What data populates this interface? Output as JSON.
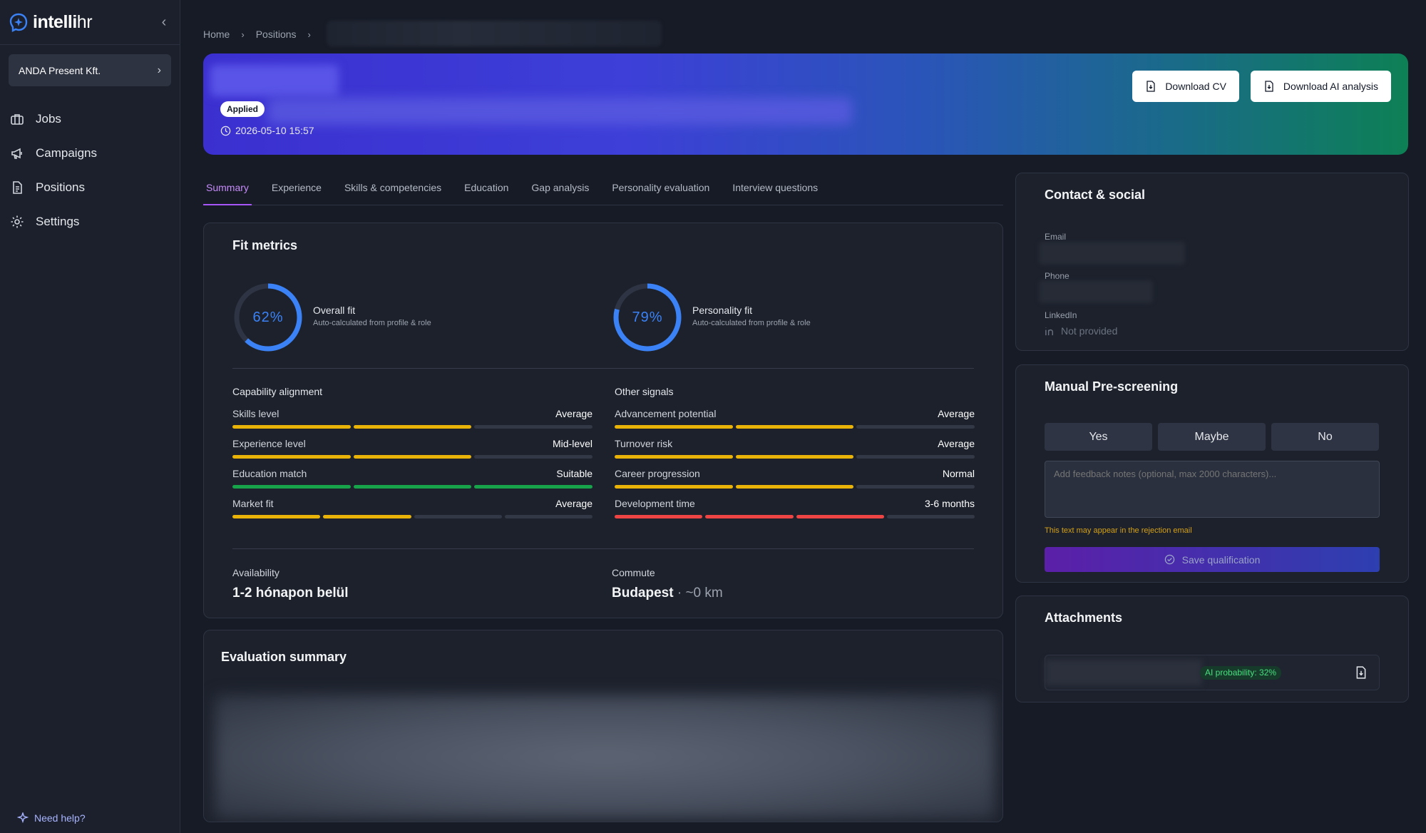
{
  "app": {
    "logo_bold": "intelli",
    "logo_light": "hr"
  },
  "sidebar": {
    "company": "ANDA Present Kft.",
    "items": [
      {
        "label": "Jobs",
        "icon": "briefcase-icon"
      },
      {
        "label": "Campaigns",
        "icon": "megaphone-icon"
      },
      {
        "label": "Positions",
        "icon": "document-icon"
      },
      {
        "label": "Settings",
        "icon": "gear-icon"
      }
    ],
    "help": "Need help?"
  },
  "breadcrumb": {
    "home": "Home",
    "positions": "Positions"
  },
  "hero": {
    "status": "Applied",
    "date": "2026-05-10 15:57",
    "download_cv": "Download CV",
    "download_ai": "Download AI analysis"
  },
  "tabs": [
    "Summary",
    "Experience",
    "Skills & competencies",
    "Education",
    "Gap analysis",
    "Personality evaluation",
    "Interview questions"
  ],
  "fit": {
    "title": "Fit metrics",
    "overall": {
      "value": "62%",
      "percent": 62,
      "label": "Overall fit",
      "sub": "Auto-calculated from profile & role"
    },
    "personality": {
      "value": "79%",
      "percent": 79,
      "label": "Personality fit",
      "sub": "Auto-calculated from profile & role"
    },
    "capability": {
      "title": "Capability alignment",
      "metrics": [
        {
          "name": "Skills level",
          "value": "Average",
          "bars": [
            "y",
            "y",
            ""
          ]
        },
        {
          "name": "Experience level",
          "value": "Mid-level",
          "bars": [
            "y",
            "y",
            ""
          ]
        },
        {
          "name": "Education match",
          "value": "Suitable",
          "bars": [
            "g",
            "g",
            "g"
          ]
        },
        {
          "name": "Market fit",
          "value": "Average",
          "bars": [
            "y",
            "y",
            "",
            ""
          ]
        }
      ]
    },
    "signals": {
      "title": "Other signals",
      "metrics": [
        {
          "name": "Advancement potential",
          "value": "Average",
          "bars": [
            "y",
            "y",
            ""
          ]
        },
        {
          "name": "Turnover risk",
          "value": "Average",
          "bars": [
            "y",
            "y",
            ""
          ]
        },
        {
          "name": "Career progression",
          "value": "Normal",
          "bars": [
            "y",
            "y",
            ""
          ]
        },
        {
          "name": "Development time",
          "value": "3-6 months",
          "bars": [
            "r",
            "r",
            "r",
            ""
          ]
        }
      ]
    },
    "availability": {
      "label": "Availability",
      "value": "1-2 hónapon belül"
    },
    "commute": {
      "label": "Commute",
      "value": "Budapest",
      "distance": " · ~0 km"
    }
  },
  "evaluation": {
    "title": "Evaluation summary"
  },
  "contact": {
    "title": "Contact & social",
    "email_label": "Email",
    "phone_label": "Phone",
    "linkedin_label": "LinkedIn",
    "linkedin_value": "Not provided"
  },
  "prescreen": {
    "title": "Manual Pre-screening",
    "yes": "Yes",
    "maybe": "Maybe",
    "no": "No",
    "placeholder": "Add feedback notes (optional, max 2000 characters)...",
    "warning": "This text may appear in the rejection email",
    "save": "Save qualification"
  },
  "attachments": {
    "title": "Attachments",
    "ai_probability": "AI probability: 32%"
  },
  "colors": {
    "accent": "#a855f7",
    "gauge": "#3b82f6",
    "yellow": "#eab308",
    "green": "#16a34a",
    "red": "#ef4444"
  }
}
